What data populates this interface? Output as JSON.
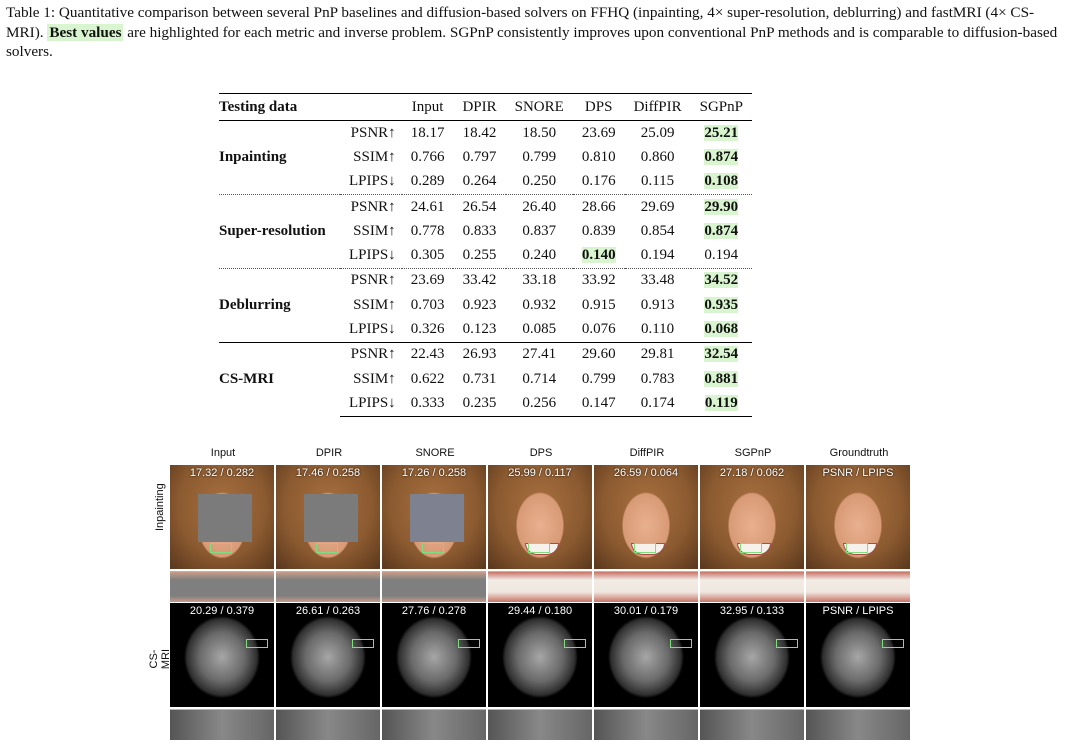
{
  "caption": {
    "prefix": "Table 1: Quantitative comparison between several PnP baselines and diffusion-based solvers on FFHQ (inpainting, 4× super-resolution, deblurring) and fastMRI (4× CS-MRI).",
    "highlight": "Best values",
    "suffix": "are highlighted for each metric and inverse problem. SGPnP consistently improves upon conventional PnP methods and is comparable to diffusion-based solvers."
  },
  "table": {
    "header": [
      "Testing data",
      "",
      "Input",
      "DPIR",
      "SNORE",
      "DPS",
      "DiffPIR",
      "SGPnP"
    ],
    "groups": [
      {
        "task": "Inpainting",
        "rows": [
          {
            "metric": "PSNR↑",
            "values": [
              "18.17",
              "18.42",
              "18.50",
              "23.69",
              "25.09",
              "25.21"
            ],
            "best": 5
          },
          {
            "metric": "SSIM↑",
            "values": [
              "0.766",
              "0.797",
              "0.799",
              "0.810",
              "0.860",
              "0.874"
            ],
            "best": 5
          },
          {
            "metric": "LPIPS↓",
            "values": [
              "0.289",
              "0.264",
              "0.250",
              "0.176",
              "0.115",
              "0.108"
            ],
            "best": 5
          }
        ]
      },
      {
        "task": "Super-resolution",
        "rows": [
          {
            "metric": "PSNR↑",
            "values": [
              "24.61",
              "26.54",
              "26.40",
              "28.66",
              "29.69",
              "29.90"
            ],
            "best": 5
          },
          {
            "metric": "SSIM↑",
            "values": [
              "0.778",
              "0.833",
              "0.837",
              "0.839",
              "0.854",
              "0.874"
            ],
            "best": 5
          },
          {
            "metric": "LPIPS↓",
            "values": [
              "0.305",
              "0.255",
              "0.240",
              "0.140",
              "0.194",
              "0.194"
            ],
            "best": 3
          }
        ]
      },
      {
        "task": "Deblurring",
        "rows": [
          {
            "metric": "PSNR↑",
            "values": [
              "23.69",
              "33.42",
              "33.18",
              "33.92",
              "33.48",
              "34.52"
            ],
            "best": 5
          },
          {
            "metric": "SSIM↑",
            "values": [
              "0.703",
              "0.923",
              "0.932",
              "0.915",
              "0.913",
              "0.935"
            ],
            "best": 5
          },
          {
            "metric": "LPIPS↓",
            "values": [
              "0.326",
              "0.123",
              "0.085",
              "0.076",
              "0.110",
              "0.068"
            ],
            "best": 5
          }
        ]
      },
      {
        "task": "CS-MRI",
        "rows": [
          {
            "metric": "PSNR↑",
            "values": [
              "22.43",
              "26.93",
              "27.41",
              "29.60",
              "29.81",
              "32.54"
            ],
            "best": 5
          },
          {
            "metric": "SSIM↑",
            "values": [
              "0.622",
              "0.731",
              "0.714",
              "0.799",
              "0.783",
              "0.881"
            ],
            "best": 5
          },
          {
            "metric": "LPIPS↓",
            "values": [
              "0.333",
              "0.235",
              "0.256",
              "0.147",
              "0.174",
              "0.119"
            ],
            "best": 5
          }
        ]
      }
    ]
  },
  "figure": {
    "columns": [
      "Input",
      "DPIR",
      "SNORE",
      "DPS",
      "DiffPIR",
      "SGPnP",
      "Groundtruth"
    ],
    "rows": [
      {
        "label": "Inpainting",
        "scores": [
          "17.32 / 0.282",
          "17.46 / 0.258",
          "17.26 / 0.258",
          "25.99 / 0.117",
          "26.59 / 0.064",
          "27.18 / 0.062",
          "PSNR / LPIPS"
        ]
      },
      {
        "label": "CS-MRI",
        "scores": [
          "20.29 / 0.379",
          "26.61 / 0.263",
          "27.76 / 0.278",
          "29.44 / 0.180",
          "30.01 / 0.179",
          "32.95 / 0.133",
          "PSNR / LPIPS"
        ]
      }
    ]
  }
}
